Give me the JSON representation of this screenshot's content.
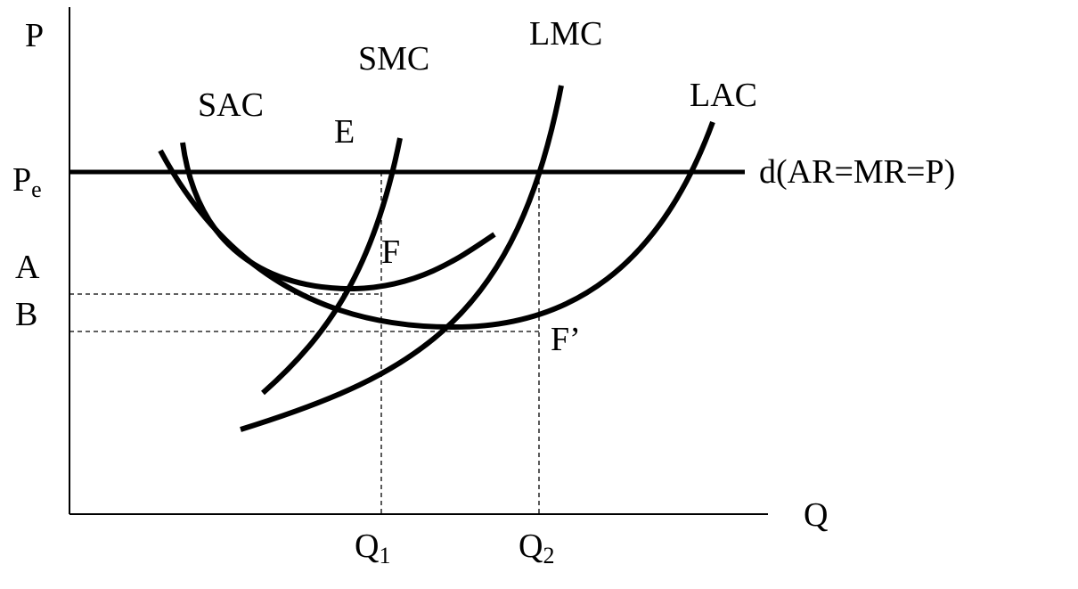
{
  "diagram": {
    "axes": {
      "y_label": "P",
      "x_label": "Q"
    },
    "y_ticks": {
      "pe": {
        "main": "P",
        "sub": "e"
      },
      "a": "A",
      "b": "B"
    },
    "x_ticks": {
      "q1": {
        "main": "Q",
        "sub": "1"
      },
      "q2": {
        "main": "Q",
        "sub": "2"
      }
    },
    "curves": {
      "sac": "SAC",
      "smc": "SMC",
      "lmc": "LMC",
      "lac": "LAC",
      "demand": "d(AR=MR=P)"
    },
    "points": {
      "e": "E",
      "f": "F",
      "f_prime": "F’"
    }
  }
}
